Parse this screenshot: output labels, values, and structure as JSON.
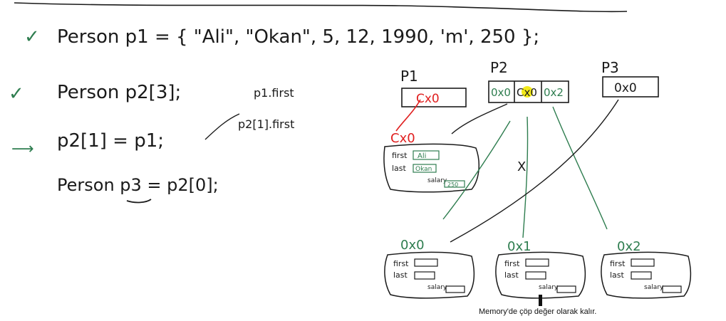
{
  "colors": {
    "ink": "#1a1a1a",
    "green": "#2e7d4f",
    "red": "#e02020",
    "highlight": "#f3ea1a"
  },
  "code": {
    "line1": "Person p1 = { \"Ali\", \"Okan\", 5, 12, 1990, 'm', 250 };",
    "line2": "Person p2[3];",
    "line3": "p2[1] = p1;",
    "line4": "Person p3 = p2[0];",
    "note1": "p1.first",
    "note2": "p2[1].first"
  },
  "marks": {
    "line1_check": "✓",
    "line2_check": "✓",
    "line3_arrow": "⟶"
  },
  "memory": {
    "p1_label": "P1",
    "p2_label": "P2",
    "p3_label": "P3",
    "p1_value": "Cx0",
    "p2_cells": [
      "0x0",
      "Cx0",
      "0x2"
    ],
    "p3_value": "0x0",
    "heap_red_label": "Cx0",
    "heap_red_first": "Ali",
    "heap_red_last": "Okan",
    "heap_red_salary": "250",
    "heap_labels": [
      "0x0",
      "0x1",
      "0x2"
    ],
    "field_first": "first",
    "field_last": "last",
    "field_salary": "salary",
    "cross": "X"
  },
  "caption": "Memory'de çöp değer olarak kalır."
}
